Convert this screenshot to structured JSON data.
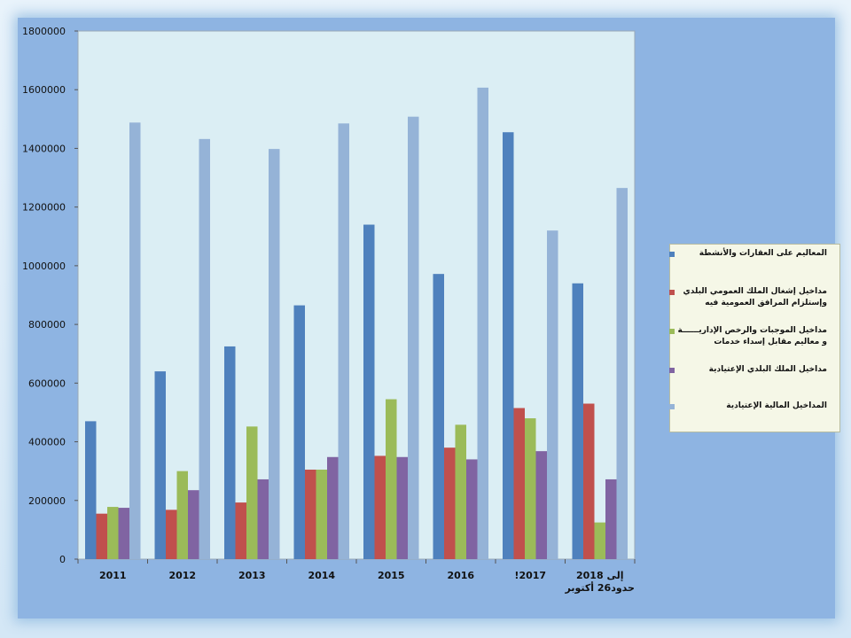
{
  "chart_data": {
    "type": "bar",
    "title": "",
    "xlabel": "",
    "ylabel": "",
    "ylim": [
      0,
      1800000
    ],
    "yticks": [
      0,
      200000,
      400000,
      600000,
      800000,
      1000000,
      1200000,
      1400000,
      1600000,
      1800000
    ],
    "grid": "none",
    "legend_position": "right",
    "categories": [
      [
        "2011"
      ],
      [
        "2012"
      ],
      [
        "2013"
      ],
      [
        "2014"
      ],
      [
        "2015"
      ],
      [
        "2016"
      ],
      [
        "!2017"
      ],
      [
        "2018 إلى",
        "حدود26 أكتوبر"
      ]
    ],
    "series": [
      {
        "name": "المعاليم على العقارات والأنشطة",
        "color": "#4f81bd",
        "values": [
          470000,
          640000,
          725000,
          865000,
          1140000,
          972000,
          1455000,
          940000
        ]
      },
      {
        "name": "مداخيل إشغال الملك العمومي البلدي وإستلزام المرافق العمومية فيه",
        "color": "#c0504d",
        "values": [
          155000,
          168000,
          193000,
          305000,
          352000,
          380000,
          515000,
          530000
        ]
      },
      {
        "name": "مداخيل الموجبات والرخص الإداريــــــة و معاليم مقابل إسداء خدمات",
        "color": "#9bbb59",
        "values": [
          178000,
          300000,
          452000,
          305000,
          545000,
          458000,
          480000,
          125000
        ]
      },
      {
        "name": "مداخيل الملك البلدي الإعتيادية",
        "color": "#8064a2",
        "values": [
          175000,
          235000,
          272000,
          348000,
          348000,
          340000,
          368000,
          272000
        ]
      },
      {
        "name": "المداخيل المالية الإعتيادية",
        "color": "#95b3d7",
        "values": [
          1488000,
          1432000,
          1398000,
          1485000,
          1508000,
          1607000,
          1120000,
          1265000
        ]
      }
    ]
  }
}
